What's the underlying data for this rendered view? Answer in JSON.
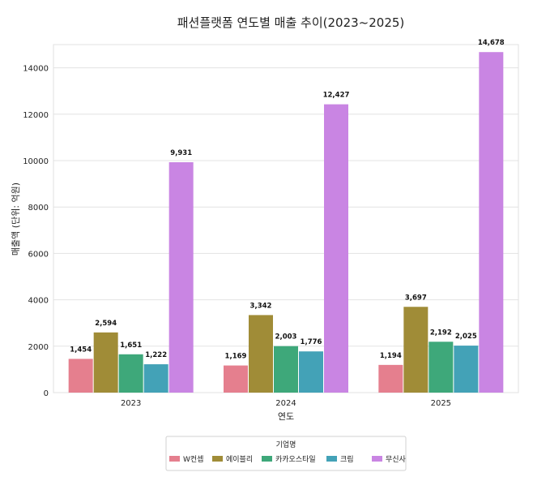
{
  "chart_data": {
    "type": "bar",
    "title": "패션플랫폼 연도별 매출 추이(2023~2025)",
    "xlabel": "연도",
    "ylabel": "매출액 (단위: 억원)",
    "categories": [
      "2023",
      "2024",
      "2025"
    ],
    "ylim": [
      0,
      15000
    ],
    "yticks": [
      0,
      2000,
      4000,
      6000,
      8000,
      10000,
      12000,
      14000
    ],
    "grid": true,
    "legend_title": "기업명",
    "legend_position": "bottom-center",
    "series": [
      {
        "name": "W컨셉",
        "color": "#e57f8e",
        "values": [
          1454,
          1169,
          1194
        ],
        "labels": [
          "1,454",
          "1,169",
          "1,194"
        ]
      },
      {
        "name": "에이블리",
        "color": "#a08c37",
        "values": [
          2594,
          3342,
          3697
        ],
        "labels": [
          "2,594",
          "3,342",
          "3,697"
        ]
      },
      {
        "name": "카카오스타일",
        "color": "#3ea87a",
        "values": [
          1651,
          2003,
          2192
        ],
        "labels": [
          "1,651",
          "2,003",
          "2,192"
        ]
      },
      {
        "name": "크림",
        "color": "#43a2b7",
        "values": [
          1222,
          1776,
          2025
        ],
        "labels": [
          "1,222",
          "1,776",
          "2,025"
        ]
      },
      {
        "name": "무신사",
        "color": "#c985e3",
        "values": [
          9931,
          12427,
          14678
        ],
        "labels": [
          "9,931",
          "12,427",
          "14,678"
        ]
      }
    ]
  }
}
